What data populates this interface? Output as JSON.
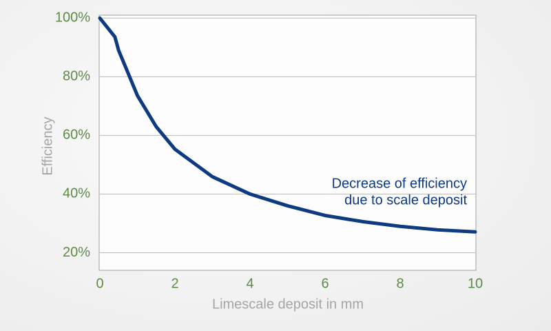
{
  "chart_data": {
    "type": "line",
    "x_label": "Limescale deposit in mm",
    "y_label": "Efficiency",
    "annotation": [
      "Decrease of efficiency",
      "due to scale deposit"
    ],
    "series": [
      {
        "color": "#0d3a80",
        "x": [
          0,
          0.4,
          0.5,
          1,
          1.5,
          2,
          3,
          4,
          5,
          6,
          7,
          8,
          9,
          10
        ],
        "values": [
          100,
          93.6,
          89,
          73.6,
          63,
          55.3,
          45.9,
          40,
          36,
          32.7,
          30.6,
          29,
          27.8,
          27.1
        ]
      }
    ],
    "xlim": [
      0,
      10
    ],
    "xticks": [
      0,
      2,
      4,
      6,
      8,
      10
    ],
    "ylim": [
      14,
      101
    ],
    "yticks": [
      {
        "value": 20,
        "label": "20%"
      },
      {
        "value": 40,
        "label": "40%"
      },
      {
        "value": 60,
        "label": "60%"
      },
      {
        "value": 80,
        "label": "80%"
      },
      {
        "value": 100,
        "label": "100%"
      }
    ],
    "grid": true
  }
}
